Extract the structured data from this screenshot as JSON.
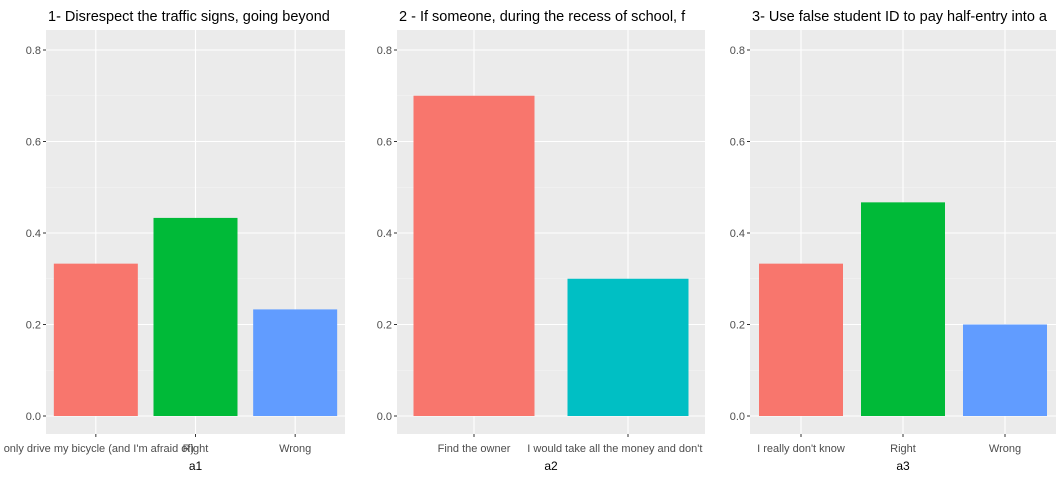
{
  "chart_data": [
    {
      "type": "bar",
      "title": "1- Disrespect the traffic signs, going beyond",
      "xlabel": "a1",
      "ylabel": "",
      "ylim": [
        0,
        0.84
      ],
      "yticks": [
        "0.0",
        "0.2",
        "0.4",
        "0.6",
        "0.8"
      ],
      "ytick_values": [
        0,
        0.2,
        0.4,
        0.6,
        0.8
      ],
      "grid": true,
      "categories": [
        "I only drive my bicycle (and I'm afraid of)",
        "Right",
        "Wrong"
      ],
      "values": [
        0.333,
        0.433,
        0.233
      ],
      "colors": [
        "#F8766D",
        "#00BA38",
        "#619CFF"
      ]
    },
    {
      "type": "bar",
      "title": "2 - If someone, during the recess of school, f",
      "xlabel": "a2",
      "ylabel": "",
      "ylim": [
        0,
        0.84
      ],
      "yticks": [
        "0.0",
        "0.2",
        "0.4",
        "0.6",
        "0.8"
      ],
      "ytick_values": [
        0,
        0.2,
        0.4,
        0.6,
        0.8
      ],
      "grid": true,
      "categories": [
        "Find the owner",
        "I would take all the money and don't tell a"
      ],
      "values": [
        0.7,
        0.3
      ],
      "colors": [
        "#F8766D",
        "#00BFC4"
      ]
    },
    {
      "type": "bar",
      "title": "3- Use false student ID to pay half-entry into a",
      "xlabel": "a3",
      "ylabel": "",
      "ylim": [
        0,
        0.84
      ],
      "yticks": [
        "0.0",
        "0.2",
        "0.4",
        "0.6",
        "0.8"
      ],
      "ytick_values": [
        0,
        0.2,
        0.4,
        0.6,
        0.8
      ],
      "grid": true,
      "categories": [
        "I really don't know",
        "Right",
        "Wrong"
      ],
      "values": [
        0.333,
        0.467,
        0.2
      ],
      "colors": [
        "#F8766D",
        "#00BA38",
        "#619CFF"
      ]
    }
  ]
}
